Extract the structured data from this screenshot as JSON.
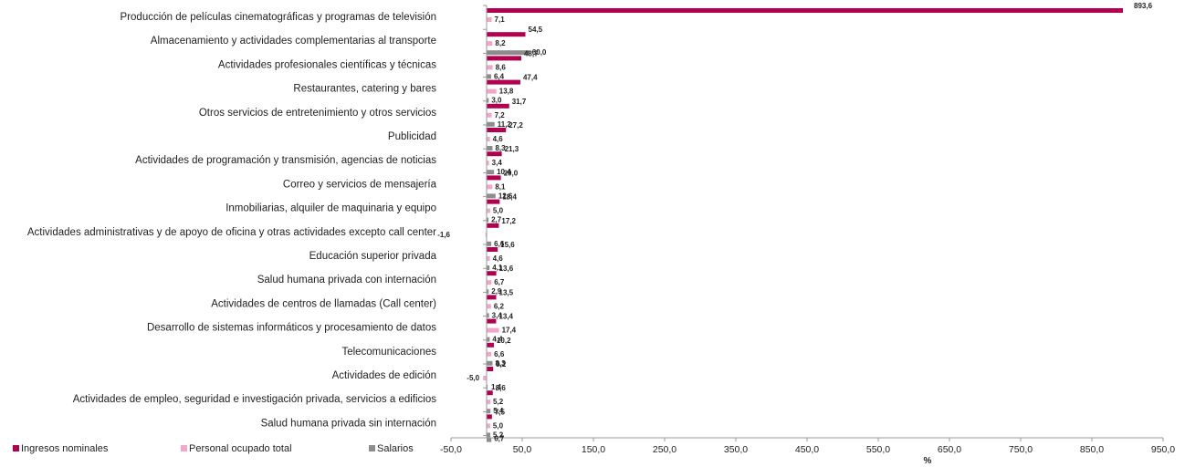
{
  "chart_data": {
    "type": "bar",
    "orientation": "horizontal",
    "xlabel": "%",
    "xlim": [
      -50,
      950
    ],
    "xticks": [
      "-50,0",
      "50,0",
      "150,0",
      "250,0",
      "350,0",
      "450,0",
      "550,0",
      "650,0",
      "750,0",
      "850,0",
      "950,0"
    ],
    "legend_position": "bottom-left",
    "categories": [
      "Producción de películas cinematográficas y programas de televisión",
      "Almacenamiento y actividades complementarias al transporte",
      "Actividades profesionales científicas y técnicas",
      "Restaurantes, catering y bares",
      "Otros servicios de entretenimiento y otros servicios",
      "Publicidad",
      "Actividades de programación y transmisión,  agencias de noticias",
      "Correo y servicios de mensajería",
      "Inmobiliarias, alquiler de maquinaria y equipo",
      "Actividades administrativas y de apoyo de oficina y otras actividades excepto call center",
      "Educación superior privada",
      "Salud humana privada con internación",
      "Actividades de centros de llamadas (Call center)",
      "Desarrollo de sistemas informáticos y procesamiento de datos",
      "Telecomunicaciones",
      "Actividades de edición",
      "Actividades de empleo, seguridad e investigación privada, servicios a edificios",
      "Salud humana privada sin internación"
    ],
    "series": [
      {
        "name": "Ingresos nominales",
        "color": "#b0004f",
        "values": [
          893.6,
          54.5,
          48.7,
          47.4,
          31.7,
          27.2,
          21.3,
          20.0,
          18.4,
          17.2,
          15.6,
          13.6,
          13.5,
          13.4,
          10.2,
          9.2,
          8.6,
          7.5
        ],
        "labels": [
          "893,6",
          "54,5",
          "48,7",
          "47,4",
          "31,7",
          "27,2",
          "21,3",
          "20,0",
          "18,4",
          "17,2",
          "15,6",
          "13,6",
          "13,5",
          "13,4",
          "10,2",
          "9,2",
          "8,6",
          "7,5"
        ]
      },
      {
        "name": "Personal ocupado total",
        "color": "#f4a6c9",
        "values": [
          7.1,
          8.2,
          8.6,
          13.8,
          7.2,
          4.6,
          3.4,
          8.1,
          5.0,
          -1.6,
          4.6,
          6.7,
          6.2,
          17.4,
          6.6,
          -5.0,
          5.2,
          5.0
        ],
        "labels": [
          "7,1",
          "8,2",
          "8,6",
          "13,8",
          "7,2",
          "4,6",
          "3,4",
          "8,1",
          "5,0",
          "-1,6",
          "4,6",
          "6,7",
          "6,2",
          "17,4",
          "6,6",
          "-5,0",
          "5,2",
          "5,0"
        ]
      },
      {
        "name": "Salarios",
        "color": "#8c8c8c",
        "values": [
          null,
          60.0,
          6.4,
          3.0,
          11.2,
          8.3,
          10.4,
          12.6,
          2.7,
          6.6,
          4.1,
          2.9,
          3.4,
          4.4,
          8.3,
          1.4,
          5.4,
          5.2
        ],
        "labels": [
          "",
          "60,0",
          "6,4",
          "3,0",
          "11,2",
          "8,3",
          "10,4",
          "12,6",
          "2,7",
          "6,6",
          "4,1",
          "2,9",
          "3,4",
          "4,4",
          "8,3",
          "1,4",
          "5,4",
          "5,2"
        ]
      }
    ],
    "extra_bar": {
      "series": "Salarios",
      "value": 6.7,
      "label": "6,7"
    }
  }
}
